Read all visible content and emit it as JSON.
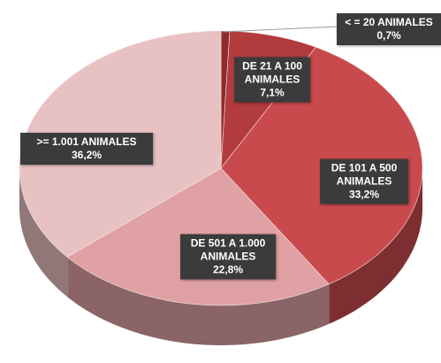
{
  "chart_data": {
    "type": "pie",
    "categories": [
      "< = 20 ANIMALES",
      "DE 21 A 100 ANIMALES",
      "DE 101 A 500 ANIMALES",
      "DE 501 A 1.000 ANIMALES",
      ">= 1.001 ANIMALES"
    ],
    "values": [
      0.7,
      7.1,
      33.2,
      22.8,
      36.2
    ],
    "value_labels": [
      "0,7%",
      "7,1%",
      "33,2%",
      "22,8%",
      "36,2%"
    ],
    "colors": [
      "#8e2b2d",
      "#b23b3d",
      "#c94a4d",
      "#dfa1a4",
      "#e8c2c3"
    ]
  }
}
